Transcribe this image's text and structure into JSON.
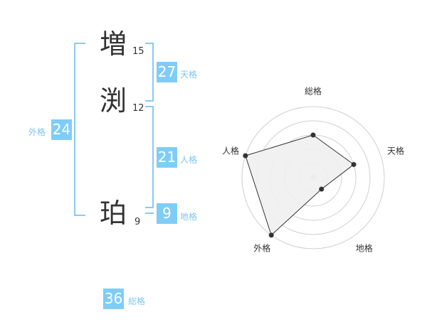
{
  "name": {
    "chars": [
      {
        "char": "増",
        "strokes": "15"
      },
      {
        "char": "渕",
        "strokes": "12"
      },
      {
        "char": "珀",
        "strokes": "9"
      }
    ]
  },
  "fortunes": {
    "tenkaku": {
      "label": "天格",
      "value": "27"
    },
    "jinkaku": {
      "label": "人格",
      "value": "21"
    },
    "chikaku": {
      "label": "地格",
      "value": "9"
    },
    "gaikaku": {
      "label": "外格",
      "value": "24"
    },
    "soukaku": {
      "label": "総格",
      "value": "36"
    }
  },
  "colors": {
    "accent": "#7fcdf7",
    "bracket": "#8ccaf0",
    "radar_fill": "#f0f0f0",
    "radar_stroke": "#333333"
  },
  "chart_data": {
    "type": "radar",
    "axes": [
      "総格",
      "天格",
      "地格",
      "外格",
      "人格"
    ],
    "values": [
      3,
      3,
      1,
      5,
      5
    ],
    "range": [
      0,
      5
    ],
    "grid": true
  }
}
